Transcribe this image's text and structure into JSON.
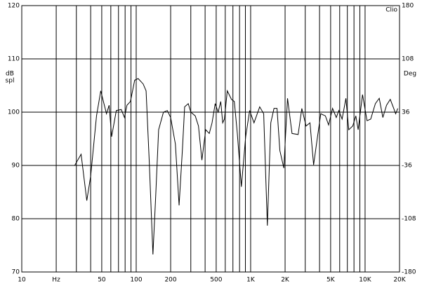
{
  "chart_data": {
    "type": "line",
    "xscale": "log",
    "color": "#000000",
    "brand": "Clio",
    "ylabel": [
      "dB",
      "spl"
    ],
    "y2label": "Deg",
    "xlim": [
      10,
      20000
    ],
    "xticks": [
      10,
      {
        "value": 20,
        "label": "Hz"
      },
      50,
      100,
      200,
      500,
      {
        "value": 1000,
        "label": "1K"
      },
      {
        "value": 2000,
        "label": "2K"
      },
      {
        "value": 5000,
        "label": "5K"
      },
      {
        "value": 10000,
        "label": "10K"
      },
      {
        "value": 20000,
        "label": "20K"
      }
    ],
    "xgrid_minor": [
      30,
      40,
      60,
      70,
      80,
      90,
      300,
      400,
      600,
      700,
      800,
      900,
      3000,
      4000,
      6000,
      7000,
      8000,
      9000
    ],
    "ylim": [
      70,
      120
    ],
    "yticks": [
      70,
      80,
      90,
      100,
      110,
      120
    ],
    "y2lim": [
      -180,
      180
    ],
    "y2ticks": [
      -180,
      -108,
      -36,
      36,
      108,
      180
    ],
    "grid": true,
    "x": [
      29,
      33,
      37,
      40,
      45,
      49,
      55,
      58,
      61,
      67,
      74,
      79,
      83,
      89,
      97,
      104,
      115,
      122,
      130,
      140,
      148,
      157,
      173,
      187,
      200,
      220,
      237,
      254,
      265,
      285,
      300,
      328,
      350,
      375,
      405,
      435,
      460,
      490,
      520,
      548,
      570,
      590,
      625,
      680,
      720,
      765,
      830,
      905,
      980,
      1070,
      1200,
      1300,
      1400,
      1500,
      1600,
      1700,
      1800,
      1950,
      2100,
      2300,
      2600,
      2800,
      3050,
      3300,
      3550,
      3800,
      4100,
      4500,
      4800,
      5200,
      5600,
      5900,
      6300,
      6800,
      7200,
      7800,
      8300,
      8700,
      9500,
      10400,
      11200,
      12300,
      13300,
      14300,
      15400,
      16600,
      17800,
      18500,
      19300
    ],
    "values": [
      90,
      92.1,
      83.4,
      88,
      99.3,
      104,
      99.7,
      101.3,
      95.4,
      100.3,
      100.5,
      99,
      101.3,
      102,
      106,
      106.3,
      105.3,
      104,
      90.8,
      73.3,
      84.2,
      96.7,
      100,
      100.3,
      99,
      94,
      82.5,
      93.4,
      101,
      101.6,
      100,
      99.3,
      97.4,
      91,
      96.7,
      96,
      98,
      101.6,
      100,
      102,
      98,
      98.7,
      104,
      102.4,
      102,
      96,
      86,
      95.4,
      100.3,
      98,
      101,
      99.7,
      78.7,
      98,
      100.7,
      100.7,
      92.8,
      89.5,
      102.6,
      96,
      95.8,
      100.7,
      97.4,
      98,
      90.1,
      94.7,
      99.7,
      99.3,
      97.6,
      100.7,
      99,
      100.3,
      98.7,
      102.6,
      96.7,
      97.4,
      99.3,
      96.7,
      103.3,
      98.4,
      98.7,
      101.6,
      102.6,
      99,
      101.3,
      102.4,
      100.7,
      99.7,
      100.7
    ]
  }
}
